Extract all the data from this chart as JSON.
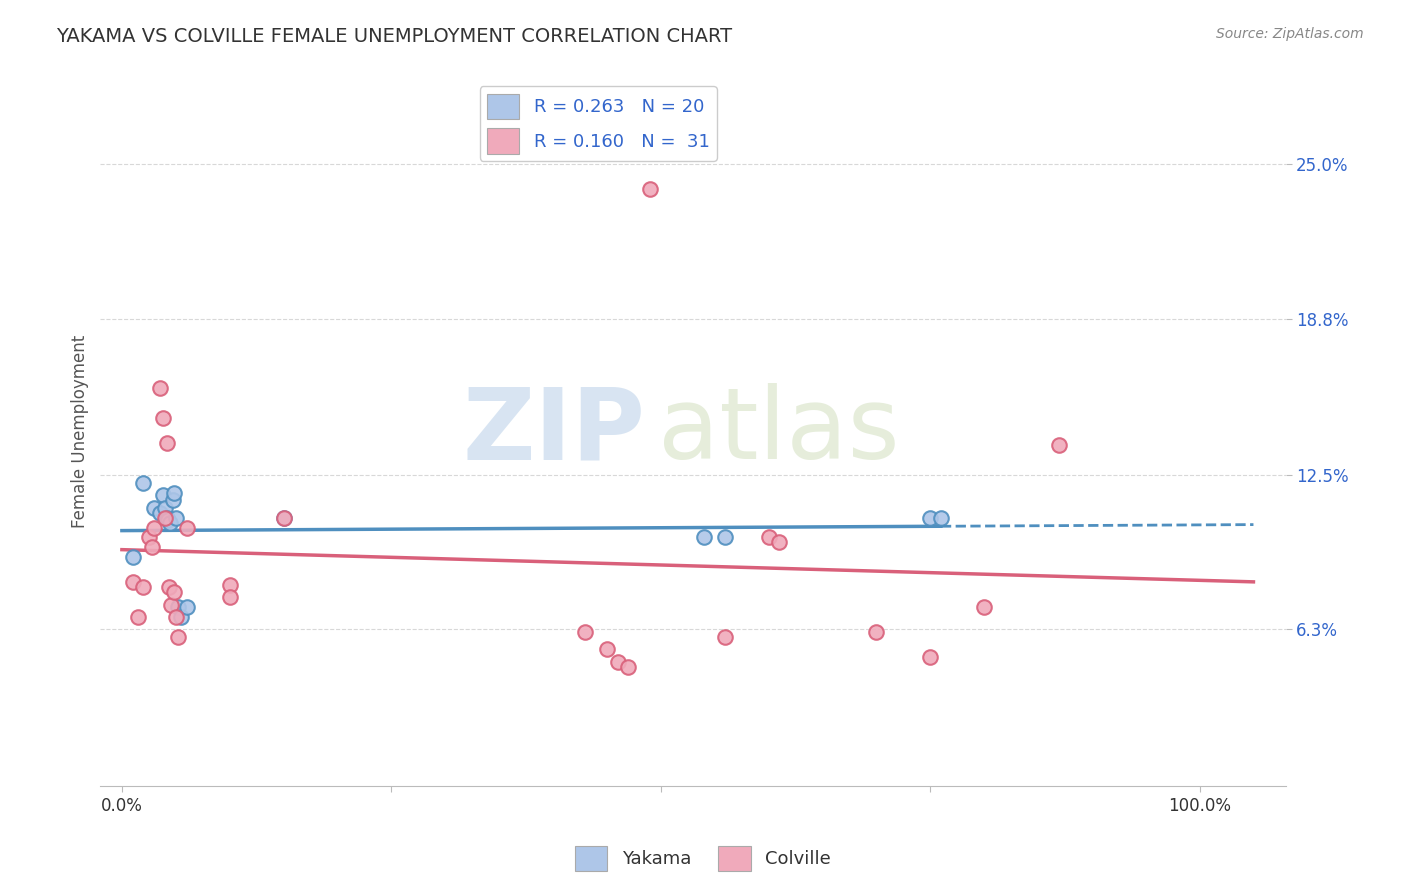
{
  "title": "YAKAMA VS COLVILLE FEMALE UNEMPLOYMENT CORRELATION CHART",
  "source": "Source: ZipAtlas.com",
  "ylabel": "Female Unemployment",
  "yakama_R": 0.263,
  "yakama_N": 20,
  "colville_R": 0.16,
  "colville_N": 31,
  "yakama_color": "#aec6e8",
  "colville_color": "#f0aabb",
  "yakama_line_color": "#4f8fbf",
  "colville_line_color": "#d9607a",
  "yakama_scatter": [
    [
      0.02,
      0.122
    ],
    [
      0.03,
      0.112
    ],
    [
      0.035,
      0.11
    ],
    [
      0.038,
      0.117
    ],
    [
      0.04,
      0.112
    ],
    [
      0.042,
      0.108
    ],
    [
      0.043,
      0.107
    ],
    [
      0.045,
      0.106
    ],
    [
      0.047,
      0.115
    ],
    [
      0.048,
      0.118
    ],
    [
      0.05,
      0.108
    ],
    [
      0.052,
      0.072
    ],
    [
      0.055,
      0.068
    ],
    [
      0.06,
      0.072
    ],
    [
      0.15,
      0.108
    ],
    [
      0.54,
      0.1
    ],
    [
      0.56,
      0.1
    ],
    [
      0.75,
      0.108
    ],
    [
      0.76,
      0.108
    ],
    [
      0.01,
      0.092
    ]
  ],
  "colville_scatter": [
    [
      0.01,
      0.082
    ],
    [
      0.015,
      0.068
    ],
    [
      0.02,
      0.08
    ],
    [
      0.025,
      0.1
    ],
    [
      0.028,
      0.096
    ],
    [
      0.03,
      0.104
    ],
    [
      0.035,
      0.16
    ],
    [
      0.038,
      0.148
    ],
    [
      0.04,
      0.108
    ],
    [
      0.042,
      0.138
    ],
    [
      0.044,
      0.08
    ],
    [
      0.046,
      0.073
    ],
    [
      0.048,
      0.078
    ],
    [
      0.05,
      0.068
    ],
    [
      0.052,
      0.06
    ],
    [
      0.06,
      0.104
    ],
    [
      0.1,
      0.081
    ],
    [
      0.1,
      0.076
    ],
    [
      0.15,
      0.108
    ],
    [
      0.43,
      0.062
    ],
    [
      0.45,
      0.055
    ],
    [
      0.46,
      0.05
    ],
    [
      0.47,
      0.048
    ],
    [
      0.49,
      0.24
    ],
    [
      0.56,
      0.06
    ],
    [
      0.6,
      0.1
    ],
    [
      0.61,
      0.098
    ],
    [
      0.7,
      0.062
    ],
    [
      0.75,
      0.052
    ],
    [
      0.8,
      0.072
    ],
    [
      0.87,
      0.137
    ]
  ],
  "yticks": [
    0.063,
    0.125,
    0.188,
    0.25
  ],
  "ytick_labels": [
    "6.3%",
    "12.5%",
    "18.8%",
    "25.0%"
  ],
  "xtick_vals": [
    0.0,
    0.25,
    0.5,
    0.75,
    1.0
  ],
  "xtick_labels": [
    "0.0%",
    "",
    "",
    "",
    "100.0%"
  ],
  "xlim": [
    -0.02,
    1.08
  ],
  "ylim": [
    0.0,
    0.285
  ],
  "watermark_zip": "ZIP",
  "watermark_atlas": "atlas",
  "background_color": "#ffffff",
  "grid_color": "#d8d8d8",
  "title_fontsize": 14,
  "axis_label_fontsize": 12,
  "tick_fontsize": 12
}
